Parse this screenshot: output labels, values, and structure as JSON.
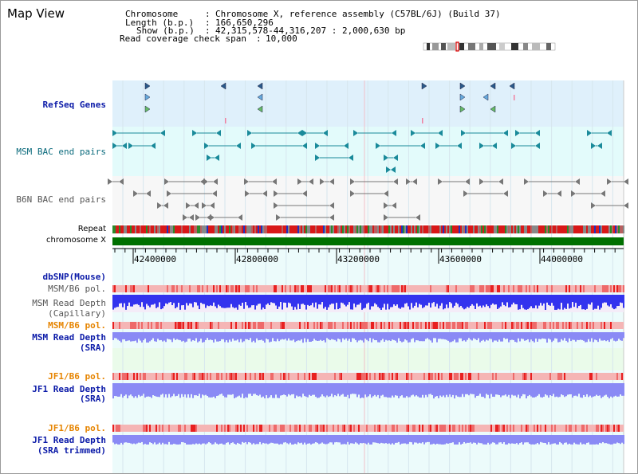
{
  "title": "Map View",
  "header": {
    "chromosome_label": "Chromosome",
    "chromosome_value": "Chromosome X, reference assembly (C57BL/6J) (Build 37)",
    "length_label": "Length (b.p.)",
    "length_value": "166,650,296",
    "show_label": "Show (b.p.)",
    "show_value": "42,315,578-44,316,207 : 2,000,630 bp",
    "coverage_label": "Read coverage check span",
    "coverage_value": "10,000"
  },
  "tracks": {
    "refseq": "RefSeq Genes",
    "msm_bac": "MSM BAC end pairs",
    "b6n_bac": "B6N BAC end pairs",
    "repeat": "Repeat",
    "chromosome": "chromosome X",
    "dbsnp": "dbSNP(Mouse)",
    "msm_b6_pol_1": "MSM/B6 pol.",
    "msm_depth_cap_1": "MSM Read Depth",
    "msm_depth_cap_2": "(Capillary)",
    "msm_b6_pol_2": "MSM/B6 pol.",
    "msm_depth_sra_1": "MSM Read Depth",
    "msm_depth_sra_2": "(SRA)",
    "jf1_b6_pol_1": "JF1/B6 pol.",
    "jf1_depth_sra_1": "JF1 Read Depth",
    "jf1_depth_sra_2": "(SRA)",
    "jf1_b6_pol_2": "JF1/B6 pol.",
    "jf1_depth_trim_1": "JF1 Read Depth",
    "jf1_depth_trim_2": "(SRA trimmed)"
  },
  "axis_ticks": [
    "42400000",
    "42800000",
    "43200000",
    "43600000",
    "44000000"
  ],
  "colors": {
    "refseq_bg": "#dff0fb",
    "bac_bg": "#e3fbfb",
    "b6n_bg": "#f7f7f7",
    "lower_bg": "#ecfbfb",
    "chrom_bar": "#007000",
    "depth_dark": "#3333ee",
    "depth_light": "#8a8af5",
    "pol_light": "#f5b5b5",
    "pol_dark": "#e82020"
  }
}
